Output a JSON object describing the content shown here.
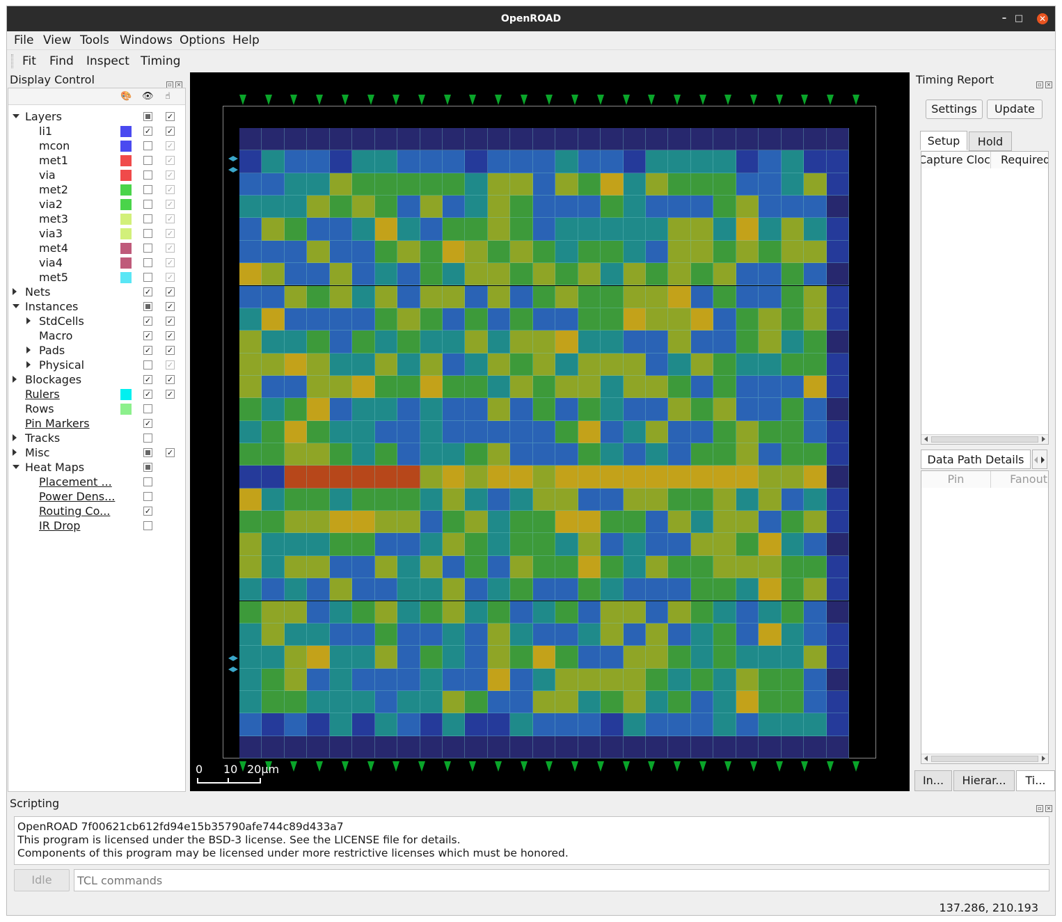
{
  "window": {
    "title": "OpenROAD",
    "min_glyph": "–",
    "max_glyph": "□",
    "close_glyph": "✕"
  },
  "menubar": [
    "File",
    "View",
    "Tools",
    "Windows",
    "Options",
    "Help"
  ],
  "toolbar": [
    "Fit",
    "Find",
    "Inspect",
    "Timing"
  ],
  "display_control": {
    "title": "Display Control",
    "rows": [
      {
        "label": "Layers",
        "indent": 0,
        "arrow": "down",
        "underline": false,
        "color": null,
        "visible": "partial",
        "select": "checked"
      },
      {
        "label": "li1",
        "indent": 1,
        "arrow": null,
        "underline": false,
        "color": "#4a4af0",
        "visible": "checked",
        "select": "checked"
      },
      {
        "label": "mcon",
        "indent": 1,
        "arrow": null,
        "underline": false,
        "color": "#4a4af0",
        "visible": "unchecked",
        "select": "disabled"
      },
      {
        "label": "met1",
        "indent": 1,
        "arrow": null,
        "underline": false,
        "color": "#f04a4a",
        "visible": "unchecked",
        "select": "disabled"
      },
      {
        "label": "via",
        "indent": 1,
        "arrow": null,
        "underline": false,
        "color": "#f04a4a",
        "visible": "unchecked",
        "select": "disabled"
      },
      {
        "label": "met2",
        "indent": 1,
        "arrow": null,
        "underline": false,
        "color": "#4ad44a",
        "visible": "unchecked",
        "select": "disabled"
      },
      {
        "label": "via2",
        "indent": 1,
        "arrow": null,
        "underline": false,
        "color": "#4ad44a",
        "visible": "unchecked",
        "select": "disabled"
      },
      {
        "label": "met3",
        "indent": 1,
        "arrow": null,
        "underline": false,
        "color": "#d2f07a",
        "visible": "unchecked",
        "select": "disabled"
      },
      {
        "label": "via3",
        "indent": 1,
        "arrow": null,
        "underline": false,
        "color": "#d2f07a",
        "visible": "unchecked",
        "select": "disabled"
      },
      {
        "label": "met4",
        "indent": 1,
        "arrow": null,
        "underline": false,
        "color": "#bf5a7a",
        "visible": "unchecked",
        "select": "disabled"
      },
      {
        "label": "via4",
        "indent": 1,
        "arrow": null,
        "underline": false,
        "color": "#bf5a7a",
        "visible": "unchecked",
        "select": "disabled"
      },
      {
        "label": "met5",
        "indent": 1,
        "arrow": null,
        "underline": false,
        "color": "#5ae6f5",
        "visible": "unchecked",
        "select": "disabled"
      },
      {
        "label": "Nets",
        "indent": 0,
        "arrow": "right",
        "underline": false,
        "color": null,
        "visible": "checked",
        "select": "checked"
      },
      {
        "label": "Instances",
        "indent": 0,
        "arrow": "down",
        "underline": false,
        "color": null,
        "visible": "partial",
        "select": "checked"
      },
      {
        "label": "StdCells",
        "indent": 1,
        "arrow": "right",
        "underline": false,
        "color": null,
        "visible": "checked",
        "select": "checked"
      },
      {
        "label": "Macro",
        "indent": 1,
        "arrow": null,
        "underline": false,
        "color": null,
        "visible": "checked",
        "select": "checked"
      },
      {
        "label": "Pads",
        "indent": 1,
        "arrow": "right",
        "underline": false,
        "color": null,
        "visible": "checked",
        "select": "checked"
      },
      {
        "label": "Physical",
        "indent": 1,
        "arrow": "right",
        "underline": false,
        "color": null,
        "visible": "unchecked",
        "select": "disabled"
      },
      {
        "label": "Blockages",
        "indent": 0,
        "arrow": "right",
        "underline": false,
        "color": null,
        "visible": "checked",
        "select": "checked"
      },
      {
        "label": "Rulers",
        "indent": 0,
        "arrow": null,
        "underline": true,
        "color": "#00f0f0",
        "visible": "checked",
        "select": "checked"
      },
      {
        "label": "Rows",
        "indent": 0,
        "arrow": null,
        "underline": false,
        "color": "#8cf08c",
        "visible": "unchecked",
        "select": null
      },
      {
        "label": "Pin Markers",
        "indent": 0,
        "arrow": null,
        "underline": true,
        "color": null,
        "visible": "checked",
        "select": null
      },
      {
        "label": "Tracks",
        "indent": 0,
        "arrow": "right",
        "underline": false,
        "color": null,
        "visible": "unchecked",
        "select": null
      },
      {
        "label": "Misc",
        "indent": 0,
        "arrow": "right",
        "underline": false,
        "color": null,
        "visible": "partial",
        "select": "checked"
      },
      {
        "label": "Heat Maps",
        "indent": 0,
        "arrow": "down",
        "underline": false,
        "color": null,
        "visible": "partial",
        "select": null
      },
      {
        "label": "Placement ...",
        "indent": 1,
        "arrow": null,
        "underline": true,
        "color": null,
        "visible": "unchecked",
        "select": null
      },
      {
        "label": "Power Dens...",
        "indent": 1,
        "arrow": null,
        "underline": true,
        "color": null,
        "visible": "unchecked",
        "select": null
      },
      {
        "label": "Routing Co...",
        "indent": 1,
        "arrow": null,
        "underline": true,
        "color": null,
        "visible": "checked",
        "select": null
      },
      {
        "label": "IR Drop",
        "indent": 1,
        "arrow": null,
        "underline": true,
        "color": null,
        "visible": "unchecked",
        "select": null
      }
    ]
  },
  "layout_view": {
    "scale_labels": [
      "0",
      "10",
      "20µm"
    ],
    "heatmap_palette": [
      "#27286e",
      "#253a9a",
      "#2a63b5",
      "#1f8a8a",
      "#3d9a3a",
      "#8fa526",
      "#c3a21a",
      "#c8761a",
      "#b7471a"
    ],
    "pin_color": "#0aa52a"
  },
  "timing_report": {
    "title": "Timing Report",
    "settings_label": "Settings",
    "update_label": "Update",
    "tabs": [
      "Setup",
      "Hold"
    ],
    "columns": [
      "Capture Cloc",
      "Required"
    ],
    "details_tab": "Data Path Details",
    "details_columns": [
      "Pin",
      "Fanout"
    ]
  },
  "bottom_tabs": [
    "In...",
    "Hierar...",
    "Ti..."
  ],
  "scripting": {
    "title": "Scripting",
    "output": [
      "OpenROAD 7f00621cb612fd94e15b35790afe744c89d433a7",
      "This program is licensed under the BSD-3 license. See the LICENSE file for details.",
      "Components of this program may be licensed under more restrictive licenses which must be honored."
    ],
    "idle_label": "Idle",
    "command_placeholder": "TCL commands"
  },
  "status": {
    "coordinates": "137.286, 210.193"
  }
}
